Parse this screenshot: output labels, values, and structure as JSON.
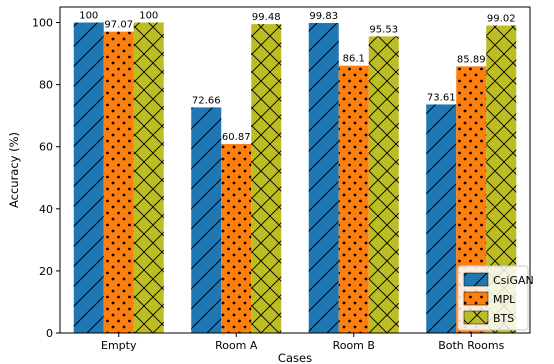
{
  "chart_data": {
    "type": "bar",
    "categories": [
      "Empty",
      "Room A",
      "Room B",
      "Both Rooms"
    ],
    "series": [
      {
        "name": "CsiGAN",
        "values": [
          100,
          72.66,
          99.83,
          73.61
        ],
        "labels": [
          "100",
          "72.66",
          "99.83",
          "73.61"
        ],
        "color": "#1f77b4",
        "hatch": "diagonal"
      },
      {
        "name": "MPL",
        "values": [
          97.07,
          60.87,
          86.1,
          85.89
        ],
        "labels": [
          "97.07",
          "60.87",
          "86.1",
          "85.89"
        ],
        "color": "#ff7f0e",
        "hatch": "dots"
      },
      {
        "name": "BTS",
        "values": [
          100,
          99.48,
          95.53,
          99.02
        ],
        "labels": [
          "100",
          "99.48",
          "95.53",
          "99.02"
        ],
        "color": "#bcbd22",
        "hatch": "cross"
      }
    ],
    "xlabel": "Cases",
    "ylabel": "Accuracy (%)",
    "ylim": [
      0,
      105
    ],
    "yticks": [
      0,
      20,
      40,
      60,
      80,
      100
    ],
    "grid": false,
    "legend_position": "bottom-right"
  }
}
